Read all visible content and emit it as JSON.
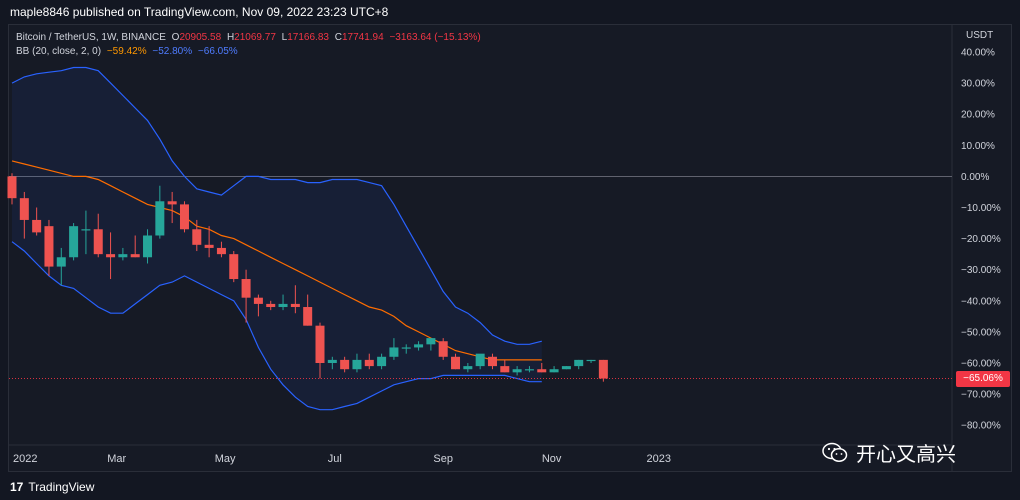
{
  "header": {
    "published": "maple8846 published on TradingView.com, Nov 09, 2022 23:23 UTC+8"
  },
  "legend": {
    "symbol": "Bitcoin / TetherUS, 1W, BINANCE",
    "o_label": "O",
    "o_value": "20905.58",
    "h_label": "H",
    "h_value": "21069.77",
    "l_label": "L",
    "l_value": "17166.83",
    "c_label": "C",
    "c_value": "17741.94",
    "change": "−3163.64 (−15.13%)",
    "bb_label": "BB (20, close, 2, 0)",
    "bb_basis": "−59.42%",
    "bb_upper": "−52.80%",
    "bb_lower": "−66.05%"
  },
  "price_badge": "−65.06%",
  "footer": {
    "brand": "TradingView",
    "watermark": "开心又高兴"
  },
  "colors": {
    "up": "#26a69a",
    "down": "#ef5350",
    "basis": "#ff6d00",
    "band": "#2962ff",
    "orange_text": "#ff9800",
    "blue_text": "#4f7cff",
    "red_text": "#f23645"
  },
  "chart_data": {
    "type": "candlestick",
    "title": "Bitcoin / TetherUS, 1W, BINANCE",
    "y_axis_unit": "USDT",
    "ylim": [
      -85,
      45
    ],
    "y_ticks": [
      40,
      30,
      20,
      10,
      0,
      -10,
      -20,
      -30,
      -40,
      -50,
      -60,
      -70,
      -80
    ],
    "y_tick_labels": [
      "40.00%",
      "30.00%",
      "20.00%",
      "10.00%",
      "0.00%",
      "−10.00%",
      "−20.00%",
      "−30.00%",
      "−40.00%",
      "−50.00%",
      "−60.00%",
      "−70.00%",
      "−80.00%"
    ],
    "x_tick_labels": [
      {
        "label": "2022",
        "week": 0
      },
      {
        "label": "Mar",
        "week": 8.5
      },
      {
        "label": "May",
        "week": 17.3
      },
      {
        "label": "Jul",
        "week": 26.2
      },
      {
        "label": "Sep",
        "week": 35
      },
      {
        "label": "Nov",
        "week": 43.8
      },
      {
        "label": "2023",
        "week": 52.5
      }
    ],
    "x_max_week": 69,
    "candles": [
      {
        "o": 0,
        "h": 1,
        "l": -9,
        "c": -7
      },
      {
        "o": -7,
        "h": -5,
        "l": -20,
        "c": -14
      },
      {
        "o": -14,
        "h": -10,
        "l": -19,
        "c": -18
      },
      {
        "o": -16,
        "h": -14,
        "l": -32,
        "c": -29
      },
      {
        "o": -29,
        "h": -23,
        "l": -35,
        "c": -26
      },
      {
        "o": -26,
        "h": -15,
        "l": -27,
        "c": -16
      },
      {
        "o": -17,
        "h": -11,
        "l": -25,
        "c": -17
      },
      {
        "o": -17,
        "h": -12,
        "l": -26,
        "c": -25
      },
      {
        "o": -25,
        "h": -18,
        "l": -33,
        "c": -26
      },
      {
        "o": -26,
        "h": -23,
        "l": -27,
        "c": -25
      },
      {
        "o": -25,
        "h": -19,
        "l": -26,
        "c": -26
      },
      {
        "o": -26,
        "h": -17,
        "l": -28,
        "c": -19
      },
      {
        "o": -19,
        "h": -3,
        "l": -20,
        "c": -8
      },
      {
        "o": -8,
        "h": -5,
        "l": -15,
        "c": -9
      },
      {
        "o": -9,
        "h": -8,
        "l": -18,
        "c": -17
      },
      {
        "o": -17,
        "h": -14,
        "l": -24,
        "c": -22
      },
      {
        "o": -22,
        "h": -16,
        "l": -26,
        "c": -23
      },
      {
        "o": -23,
        "h": -21,
        "l": -26,
        "c": -25
      },
      {
        "o": -25,
        "h": -24,
        "l": -34,
        "c": -33
      },
      {
        "o": -33,
        "h": -30,
        "l": -47,
        "c": -39
      },
      {
        "o": -39,
        "h": -38,
        "l": -45,
        "c": -41
      },
      {
        "o": -41,
        "h": -40,
        "l": -43,
        "c": -42
      },
      {
        "o": -42,
        "h": -38,
        "l": -43,
        "c": -41
      },
      {
        "o": -41,
        "h": -35,
        "l": -44,
        "c": -42
      },
      {
        "o": -42,
        "h": -38,
        "l": -48,
        "c": -48
      },
      {
        "o": -48,
        "h": -47,
        "l": -65,
        "c": -60
      },
      {
        "o": -60,
        "h": -58,
        "l": -62,
        "c": -59
      },
      {
        "o": -59,
        "h": -58,
        "l": -63,
        "c": -62
      },
      {
        "o": -62,
        "h": -57,
        "l": -63,
        "c": -59
      },
      {
        "o": -59,
        "h": -57,
        "l": -62,
        "c": -61
      },
      {
        "o": -61,
        "h": -57,
        "l": -62,
        "c": -58
      },
      {
        "o": -58,
        "h": -52,
        "l": -59,
        "c": -55
      },
      {
        "o": -55,
        "h": -54,
        "l": -57,
        "c": -55
      },
      {
        "o": -55,
        "h": -53,
        "l": -56,
        "c": -54
      },
      {
        "o": -54,
        "h": -53,
        "l": -56,
        "c": -52
      },
      {
        "o": -53,
        "h": -52,
        "l": -59,
        "c": -58
      },
      {
        "o": -58,
        "h": -57,
        "l": -62,
        "c": -62
      },
      {
        "o": -62,
        "h": -60,
        "l": -63,
        "c": -61
      },
      {
        "o": -61,
        "h": -58,
        "l": -62,
        "c": -57
      },
      {
        "o": -58,
        "h": -57,
        "l": -62,
        "c": -61
      },
      {
        "o": -61,
        "h": -59,
        "l": -63,
        "c": -63
      },
      {
        "o": -63,
        "h": -61,
        "l": -64,
        "c": -62
      },
      {
        "o": -62,
        "h": -61,
        "l": -63,
        "c": -62
      },
      {
        "o": -62,
        "h": -60,
        "l": -63,
        "c": -63
      },
      {
        "o": -63,
        "h": -61,
        "l": -63,
        "c": -62
      },
      {
        "o": -62,
        "h": -61,
        "l": -62,
        "c": -61
      },
      {
        "o": -61,
        "h": -59,
        "l": -62,
        "c": -59
      },
      {
        "o": -59,
        "h": -59,
        "l": -60,
        "c": -59
      },
      {
        "o": -59,
        "h": -59,
        "l": -66,
        "c": -65
      }
    ],
    "bb_upper_series": [
      30,
      32,
      33,
      33.5,
      34,
      35,
      35,
      34,
      30,
      26,
      22,
      18,
      12,
      5,
      0,
      -4,
      -5,
      -6,
      -3,
      0,
      0,
      -1,
      -1,
      -1,
      -2,
      -2,
      -1,
      -1,
      -1,
      -2,
      -3,
      -9,
      -16,
      -23,
      -30,
      -37,
      -42,
      -44,
      -47,
      -51,
      -53,
      -54,
      -54,
      -53
    ],
    "bb_basis_series": [
      5,
      4,
      3,
      2,
      1,
      0,
      0,
      -1,
      -3,
      -5,
      -7,
      -9,
      -10,
      -11,
      -13,
      -16,
      -17,
      -19,
      -20,
      -22,
      -24,
      -26,
      -28,
      -30,
      -32,
      -34,
      -36,
      -38,
      -40,
      -42,
      -43,
      -45,
      -48,
      -50,
      -52,
      -54,
      -56,
      -57,
      -58,
      -59,
      -59,
      -59,
      -59,
      -59
    ],
    "bb_lower_series": [
      -21,
      -24,
      -28,
      -32,
      -35,
      -36,
      -39,
      -42,
      -44,
      -44,
      -41,
      -38,
      -35,
      -34,
      -32,
      -34,
      -36,
      -38,
      -40,
      -46,
      -55,
      -62,
      -67,
      -71,
      -74,
      -75,
      -75,
      -74,
      -73,
      -71,
      -69,
      -67,
      -66,
      -65,
      -65,
      -64,
      -64,
      -64,
      -64,
      -64,
      -64,
      -65,
      -66,
      -66
    ]
  }
}
